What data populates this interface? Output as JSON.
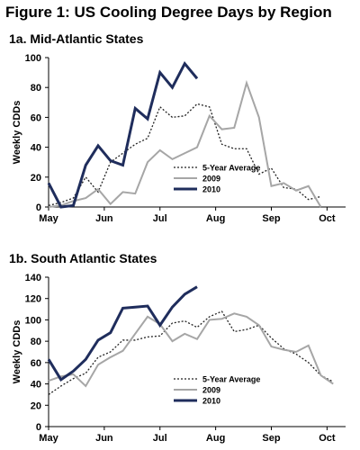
{
  "figure": {
    "title": "Figure 1: US Cooling Degree Days by Region"
  },
  "colors": {
    "avg": "#222222",
    "y2009": "#a6a6a6",
    "y2010": "#1f2d5c",
    "axis": "#000000"
  },
  "chart_data": [
    {
      "type": "line",
      "title": "1a. Mid-Atlantic States",
      "ylabel": "Weekly CDDs",
      "xlabel": "",
      "ylim": [
        0,
        100
      ],
      "yticks": [
        0,
        20,
        40,
        60,
        80,
        100
      ],
      "xlim": [
        0,
        24
      ],
      "xticks": [
        {
          "x": 0,
          "label": "May"
        },
        {
          "x": 4.5,
          "label": "Jun"
        },
        {
          "x": 9,
          "label": "Jul"
        },
        {
          "x": 13.5,
          "label": "Aug"
        },
        {
          "x": 18,
          "label": "Sep"
        },
        {
          "x": 22.5,
          "label": "Oct"
        }
      ],
      "grid": false,
      "legend_position": "center-right",
      "series": [
        {
          "name": "5-Year Average",
          "key": "avg",
          "style": "dotted",
          "values": [
            1,
            3,
            6,
            20,
            10,
            30,
            36,
            42,
            46,
            67,
            60,
            61,
            69,
            67,
            42,
            39,
            39,
            22,
            26,
            13,
            12,
            5,
            7
          ]
        },
        {
          "name": "2009",
          "key": "y2009",
          "style": "solid",
          "values": [
            0,
            1,
            4,
            6,
            12,
            2,
            10,
            9,
            30,
            38,
            32,
            36,
            40,
            61,
            52,
            53,
            83,
            60,
            14,
            16,
            11,
            14,
            0
          ]
        },
        {
          "name": "2010",
          "key": "y2010",
          "style": "bold",
          "values": [
            16,
            0,
            1,
            28,
            41,
            31,
            28,
            66,
            59,
            90,
            80,
            96,
            86
          ]
        }
      ]
    },
    {
      "type": "line",
      "title": "1b. South Atlantic States",
      "ylabel": "Weekly CDDs",
      "xlabel": "",
      "ylim": [
        0,
        140
      ],
      "yticks": [
        0,
        20,
        40,
        60,
        80,
        100,
        120,
        140
      ],
      "xlim": [
        0,
        24
      ],
      "xticks": [
        {
          "x": 0,
          "label": "May"
        },
        {
          "x": 4.5,
          "label": "Jun"
        },
        {
          "x": 9,
          "label": "Jul"
        },
        {
          "x": 13.5,
          "label": "Aug"
        },
        {
          "x": 18,
          "label": "Sep"
        },
        {
          "x": 22.5,
          "label": "Oct"
        }
      ],
      "grid": false,
      "legend_position": "bottom-center",
      "series": [
        {
          "name": "5-Year Average",
          "key": "avg",
          "style": "dotted",
          "values": [
            30,
            38,
            45,
            50,
            65,
            70,
            81,
            81,
            84,
            85,
            97,
            99,
            93,
            103,
            108,
            89,
            91,
            95,
            83,
            73,
            68,
            60,
            48,
            42
          ]
        },
        {
          "name": "2009",
          "key": "y2009",
          "style": "solid",
          "values": [
            43,
            47,
            49,
            38,
            58,
            65,
            71,
            87,
            103,
            96,
            80,
            87,
            82,
            100,
            101,
            106,
            103,
            95,
            75,
            72,
            70,
            76,
            48,
            40
          ]
        },
        {
          "name": "2010",
          "key": "y2010",
          "style": "bold",
          "values": [
            63,
            44,
            52,
            63,
            81,
            88,
            111,
            112,
            113,
            95,
            112,
            124,
            131
          ]
        }
      ]
    }
  ]
}
